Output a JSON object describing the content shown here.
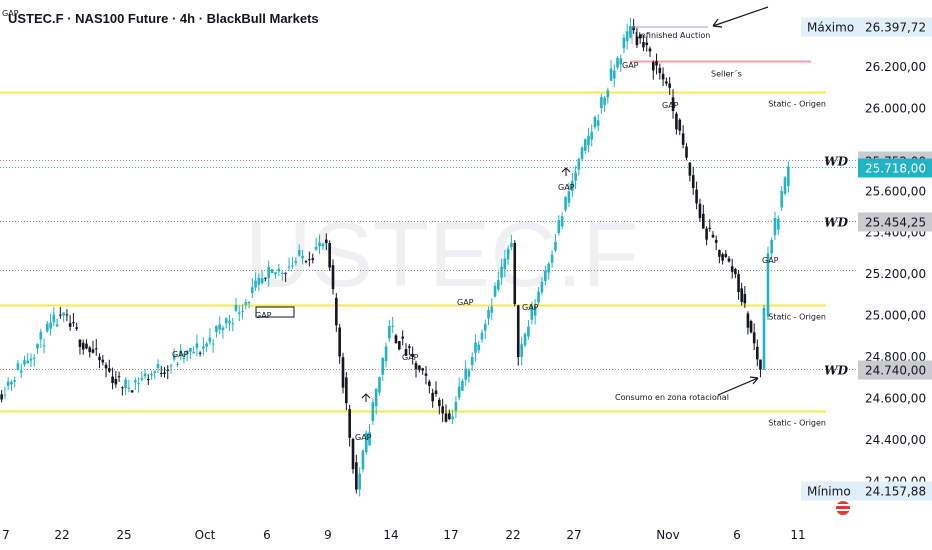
{
  "header": {
    "title": "USTEC.F · NAS100 Future · 4h · BlackBull Markets",
    "watermark": "USTEC.F"
  },
  "colors": {
    "candle": "#22b3c6",
    "candle_down": "#131722",
    "static_line": "#f5e94e",
    "seller_line": "#f4a0a6",
    "auction_line": "#9aa3e0",
    "dotted": "#8a8e9c",
    "last_price_bg": "#22b3c6",
    "wd_bg": "#c9cbd1",
    "max_bg": "#e3eefb"
  },
  "chart_data": {
    "type": "candlestick",
    "title": "USTEC.F · NAS100 Future · 4h · BlackBull Markets",
    "timeframe": "4h",
    "y_axis": {
      "ticks": [
        "26.200,00",
        "26.000,00",
        "25.600,00",
        "25.400,00",
        "25.200,00",
        "25.000,00",
        "24.800,00",
        "24.600,00",
        "24.400,00",
        "24.200,00"
      ],
      "range": [
        24100,
        26450
      ]
    },
    "x_axis": {
      "ticks": [
        "7",
        "22",
        "25",
        "Oct",
        "6",
        "9",
        "14",
        "17",
        "22",
        "27",
        "Nov",
        "6",
        "11"
      ]
    },
    "key_points": [
      {
        "x": "start",
        "y": 24620
      },
      {
        "x": "22",
        "y": 25000
      },
      {
        "x": "25",
        "y": 24650
      },
      {
        "x": "Oct",
        "y": 24850
      },
      {
        "x": "6",
        "y": 25180
      },
      {
        "x": "9",
        "y": 25350
      },
      {
        "x": "9-10",
        "y": 24160
      },
      {
        "x": "14",
        "y": 24950
      },
      {
        "x": "17",
        "y": 24500
      },
      {
        "x": "22",
        "y": 25350
      },
      {
        "x": "22-23",
        "y": 24800
      },
      {
        "x": "27",
        "y": 25650
      },
      {
        "x": "29",
        "y": 26397.72
      },
      {
        "x": "Nov",
        "y": 26120
      },
      {
        "x": "4",
        "y": 25420
      },
      {
        "x": "6",
        "y": 25200
      },
      {
        "x": "7",
        "y": 24740
      },
      {
        "x": "7-8",
        "y": 25300
      },
      {
        "x": "10",
        "y": 25718
      }
    ],
    "horizontal_levels": [
      {
        "label": "Máximo",
        "value": "26.397,72",
        "y": 26397.72,
        "kind": "max"
      },
      {
        "label": "Seller´s",
        "y": 26230,
        "kind": "seller"
      },
      {
        "label": "Static - Origen",
        "y": 26080,
        "kind": "static"
      },
      {
        "label": "WD",
        "value": "25.752,00",
        "y": 25752,
        "kind": "wd-plain"
      },
      {
        "label": "",
        "value": "25.718,00",
        "y": 25718,
        "kind": "last"
      },
      {
        "label": "WD",
        "value": "25.454,25",
        "y": 25454.25,
        "kind": "wd"
      },
      {
        "label": "",
        "y": 25220,
        "kind": "dotted"
      },
      {
        "label": "Static - Origen",
        "y": 25050,
        "kind": "static"
      },
      {
        "label": "WD",
        "value": "24.740,00",
        "y": 24740,
        "kind": "wd"
      },
      {
        "label": "Static - Origen",
        "y": 24540,
        "kind": "static"
      },
      {
        "label": "Mínimo",
        "value": "24.157,88",
        "y": 24157.88,
        "kind": "min"
      }
    ],
    "annotations": [
      {
        "text": "Unfinished Auction"
      },
      {
        "text": "Seller´s"
      },
      {
        "text": "Consumo en zona rotacional"
      },
      {
        "text": "GAP"
      }
    ]
  }
}
